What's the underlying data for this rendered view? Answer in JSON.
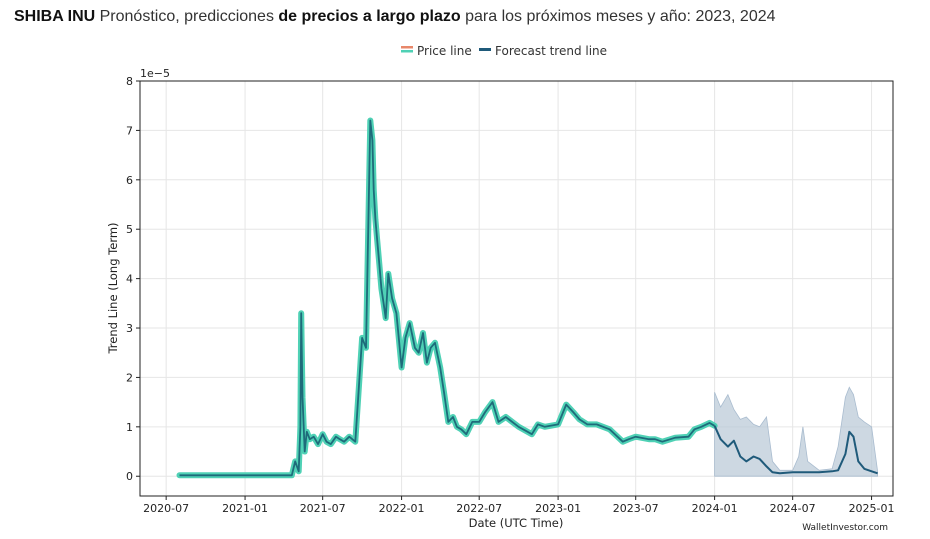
{
  "header": {
    "coin": "SHIBA INU",
    "part1": " Pronóstico, predicciones ",
    "bold": "de precios a largo plazo",
    "part2": " para los próximos meses y año: 2023, 2024"
  },
  "watermark": "WalletInvestor.com",
  "colors": {
    "price_outer": "#4fd1b5",
    "price_inner": "#1e6b7a",
    "legend_price_top": "#e8876a",
    "legend_price_bottom": "#4fd1b5",
    "forecast": "#1f5a7a",
    "band": "#b8c7d6",
    "grid": "#e6e6e6"
  },
  "chart_data": {
    "type": "line",
    "xlabel": "Date (UTC Time)",
    "ylabel": "Trend Line (Long Term)",
    "scale_label": "1e−5",
    "x_range": [
      "2020-05-01",
      "2025-02-20"
    ],
    "ylim": [
      -0.4,
      8
    ],
    "y_ticks": [
      "0",
      "1",
      "2",
      "3",
      "4",
      "5",
      "6",
      "7",
      "8"
    ],
    "x_ticks": [
      "2020-07",
      "2021-01",
      "2021-07",
      "2022-01",
      "2022-07",
      "2023-01",
      "2023-07",
      "2024-01",
      "2024-07",
      "2025-01"
    ],
    "grid": true,
    "legend": {
      "placement": "top-center",
      "entries": [
        "Price line",
        "Forecast trend line"
      ]
    },
    "series": [
      {
        "name": "Price line",
        "x": [
          "2020-08-01",
          "2021-04-20",
          "2021-04-28",
          "2021-05-06",
          "2021-05-10",
          "2021-05-12",
          "2021-05-15",
          "2021-05-20",
          "2021-05-25",
          "2021-06-01",
          "2021-06-10",
          "2021-06-20",
          "2021-07-01",
          "2021-07-10",
          "2021-07-20",
          "2021-08-01",
          "2021-08-10",
          "2021-08-20",
          "2021-09-01",
          "2021-09-15",
          "2021-10-01",
          "2021-10-10",
          "2021-10-20",
          "2021-10-25",
          "2021-10-28",
          "2021-11-01",
          "2021-11-05",
          "2021-11-10",
          "2021-11-15",
          "2021-11-20",
          "2021-11-25",
          "2021-12-01",
          "2021-12-10",
          "2021-12-20",
          "2022-01-01",
          "2022-01-10",
          "2022-01-20",
          "2022-02-01",
          "2022-02-10",
          "2022-02-20",
          "2022-03-01",
          "2022-03-10",
          "2022-03-20",
          "2022-04-01",
          "2022-04-10",
          "2022-04-20",
          "2022-05-01",
          "2022-05-10",
          "2022-05-20",
          "2022-06-01",
          "2022-06-15",
          "2022-07-01",
          "2022-07-15",
          "2022-08-01",
          "2022-08-15",
          "2022-09-01",
          "2022-10-01",
          "2022-11-01",
          "2022-11-15",
          "2022-12-01",
          "2023-01-01",
          "2023-01-20",
          "2023-02-05",
          "2023-02-20",
          "2023-03-10",
          "2023-04-01",
          "2023-05-01",
          "2023-06-01",
          "2023-06-15",
          "2023-07-01",
          "2023-08-01",
          "2023-08-15",
          "2023-09-01",
          "2023-10-01",
          "2023-11-01",
          "2023-11-15",
          "2023-12-01",
          "2023-12-20",
          "2024-01-01"
        ],
        "values": [
          0.02,
          0.02,
          0.3,
          0.1,
          1.0,
          3.3,
          1.6,
          0.5,
          0.9,
          0.75,
          0.8,
          0.65,
          0.85,
          0.7,
          0.65,
          0.8,
          0.75,
          0.7,
          0.8,
          0.7,
          2.8,
          2.6,
          7.2,
          6.8,
          5.8,
          5.2,
          4.8,
          4.3,
          3.8,
          3.5,
          3.2,
          4.1,
          3.6,
          3.3,
          2.2,
          2.8,
          3.1,
          2.6,
          2.5,
          2.9,
          2.3,
          2.6,
          2.7,
          2.2,
          1.7,
          1.1,
          1.2,
          1.0,
          0.95,
          0.85,
          1.1,
          1.1,
          1.3,
          1.5,
          1.1,
          1.2,
          1.0,
          0.85,
          1.05,
          1.0,
          1.05,
          1.45,
          1.3,
          1.15,
          1.05,
          1.05,
          0.95,
          0.7,
          0.75,
          0.8,
          0.75,
          0.75,
          0.7,
          0.78,
          0.8,
          0.95,
          1.0,
          1.08,
          1.02
        ]
      },
      {
        "name": "Forecast trend line",
        "x": [
          "2024-01-01",
          "2024-01-15",
          "2024-02-01",
          "2024-02-15",
          "2024-03-01",
          "2024-03-15",
          "2024-04-01",
          "2024-04-15",
          "2024-05-01",
          "2024-05-15",
          "2024-06-01",
          "2024-07-01",
          "2024-08-01",
          "2024-09-01",
          "2024-10-01",
          "2024-10-15",
          "2024-11-01",
          "2024-11-10",
          "2024-11-20",
          "2024-12-01",
          "2024-12-15",
          "2025-01-01",
          "2025-01-15"
        ],
        "values": [
          1.02,
          0.75,
          0.6,
          0.72,
          0.4,
          0.3,
          0.4,
          0.35,
          0.2,
          0.08,
          0.06,
          0.08,
          0.08,
          0.08,
          0.1,
          0.12,
          0.45,
          0.9,
          0.8,
          0.3,
          0.15,
          0.1,
          0.06
        ]
      }
    ],
    "forecast_band": {
      "x": [
        "2024-01-01",
        "2024-01-15",
        "2024-02-01",
        "2024-02-15",
        "2024-03-01",
        "2024-03-15",
        "2024-04-01",
        "2024-04-15",
        "2024-05-01",
        "2024-05-15",
        "2024-06-01",
        "2024-07-01",
        "2024-07-15",
        "2024-07-25",
        "2024-08-05",
        "2024-09-01",
        "2024-10-01",
        "2024-10-15",
        "2024-11-01",
        "2024-11-10",
        "2024-11-20",
        "2024-12-01",
        "2024-12-15",
        "2025-01-01",
        "2025-01-15"
      ],
      "upper": [
        1.7,
        1.4,
        1.65,
        1.35,
        1.15,
        1.2,
        1.05,
        1.0,
        1.2,
        0.3,
        0.12,
        0.12,
        0.4,
        1.0,
        0.3,
        0.12,
        0.15,
        0.6,
        1.6,
        1.8,
        1.65,
        1.2,
        1.1,
        1.0,
        0.1
      ],
      "lower": [
        0,
        0,
        0,
        0,
        0,
        0,
        0,
        0,
        0,
        0,
        0,
        0,
        0,
        0,
        0,
        0,
        0,
        0,
        0,
        0,
        0,
        0,
        0,
        0,
        0
      ]
    }
  }
}
